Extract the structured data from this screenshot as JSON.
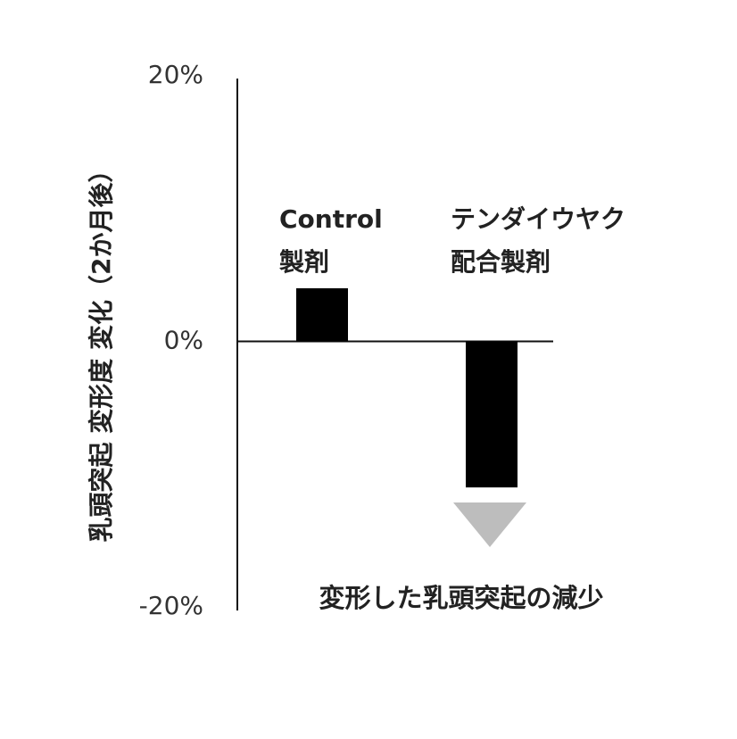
{
  "chart_data": {
    "type": "bar",
    "y_axis_label": "乳頭突起 変形度 変化（2か月後）",
    "categories": [
      "Control\n製剤",
      "テンダイウヤク\n配合製剤"
    ],
    "values": [
      4,
      -11
    ],
    "color": "#000000",
    "ylim": [
      -20,
      20
    ],
    "yticks": [
      {
        "value": -20,
        "label": "-20%"
      },
      {
        "value": 0,
        "label": "0%"
      },
      {
        "value": 20,
        "label": "20%"
      }
    ],
    "annotation": "変形した乳頭突起の減少"
  }
}
